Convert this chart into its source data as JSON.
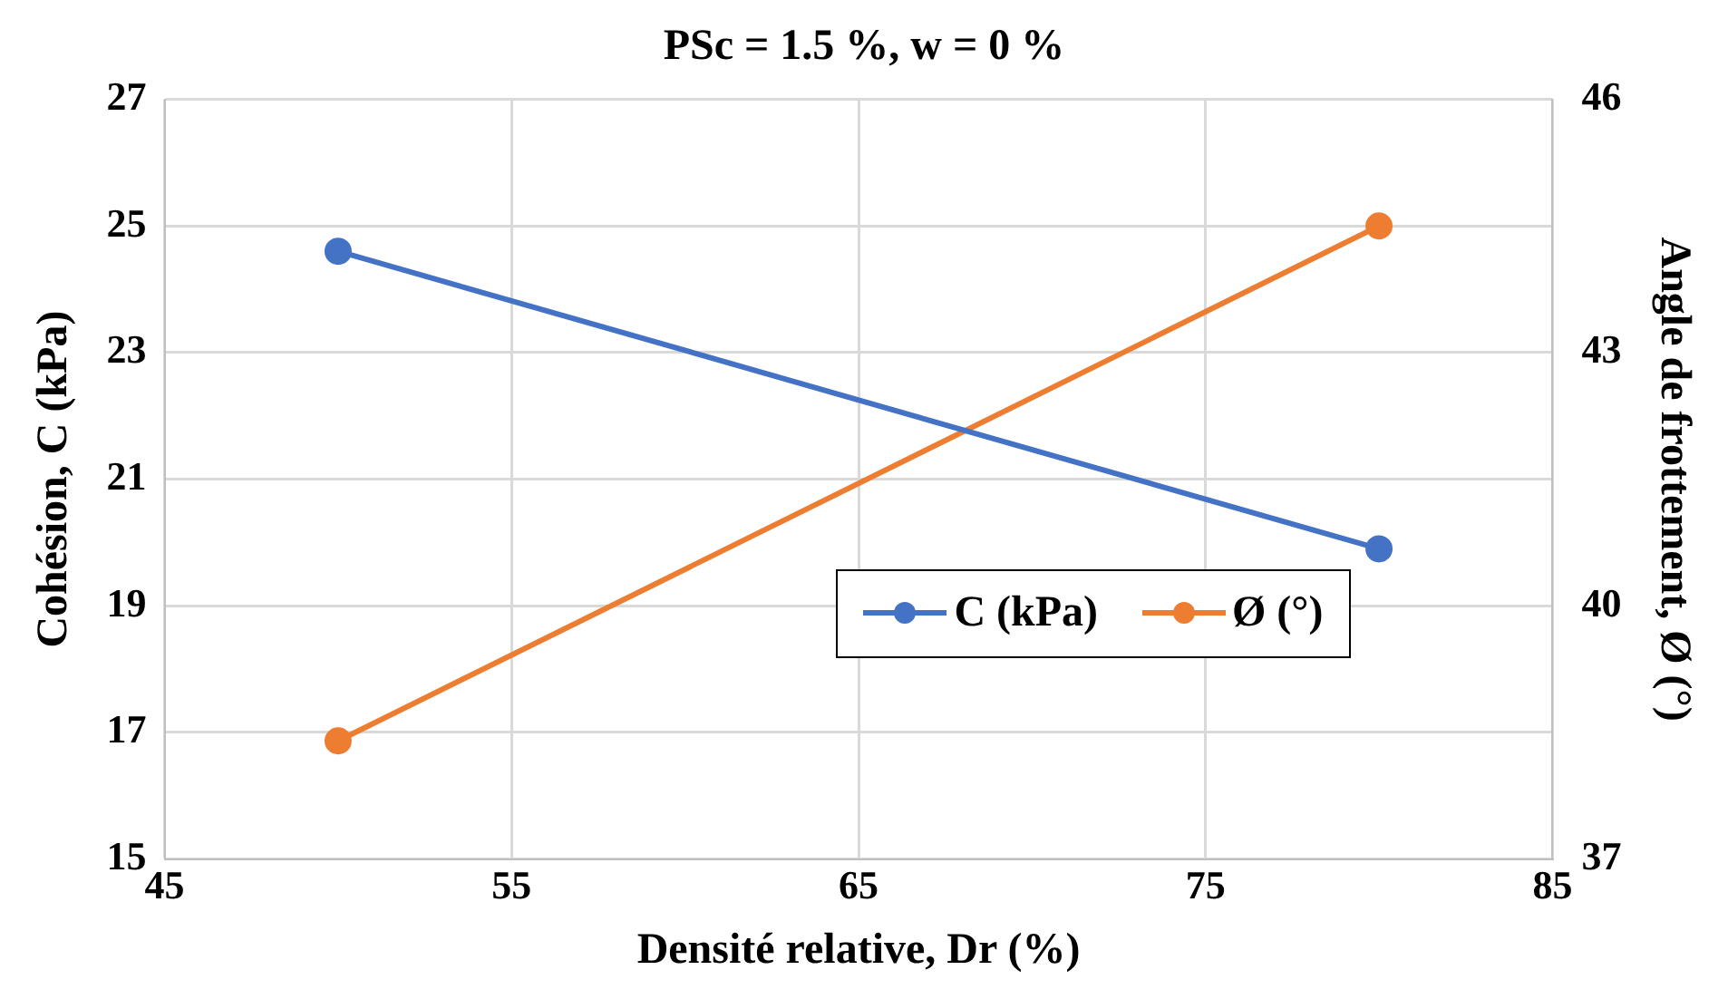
{
  "chart_data": {
    "type": "line",
    "title": "PSc = 1.5 %, w = 0 %",
    "xlabel": "Densité relative, Dr (%)",
    "ylabel": "Cohésion, C (kPa)",
    "y2label": "Angle de frottement, Ø (°)",
    "x": [
      50,
      80
    ],
    "series": [
      {
        "name": "C (kPa)",
        "color": "#4472c4",
        "values": [
          24.6,
          19.9
        ]
      },
      {
        "name": "Ø (°)",
        "color": "#ed7d31",
        "values": [
          38.4,
          44.5
        ],
        "axis": "y2"
      }
    ],
    "xlim": [
      45,
      85
    ],
    "xticks": [
      45,
      55,
      65,
      75,
      85
    ],
    "ylim": [
      15,
      27
    ],
    "yticks": [
      15,
      17,
      19,
      21,
      23,
      25,
      27
    ],
    "y2lim": [
      37,
      46
    ],
    "y2ticks": [
      37,
      40,
      43,
      46
    ],
    "grid": true,
    "legend": "bottom right",
    "marker": "circle",
    "line_style": "solid"
  }
}
